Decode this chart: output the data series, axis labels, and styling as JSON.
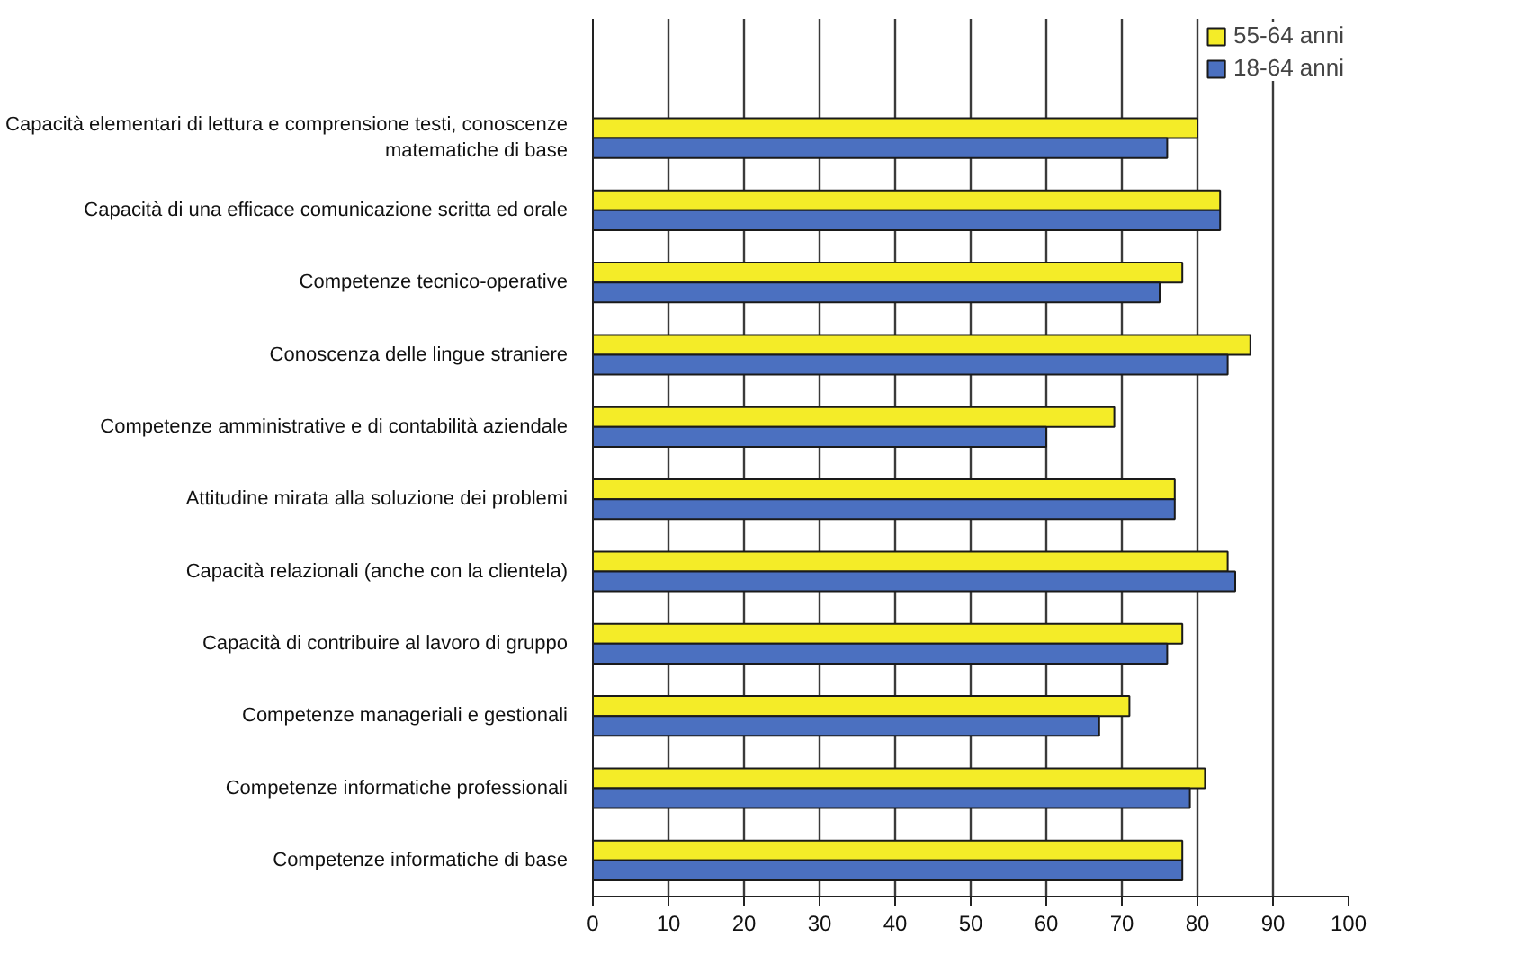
{
  "chart_data": {
    "type": "bar",
    "orientation": "horizontal",
    "categories": [
      "Capacità elementari di lettura e comprensione testi, conoscenze matematiche di base",
      "Capacità di una efficace comunicazione scritta ed orale",
      "Competenze tecnico-operative",
      "Conoscenza delle lingue straniere",
      "Competenze amministrative e di contabilità aziendale",
      "Attitudine mirata alla soluzione dei problemi",
      "Capacità relazionali (anche con la clientela)",
      "Capacità di contribuire al lavoro di gruppo",
      "Competenze manageriali e gestionali",
      "Competenze informatiche professionali",
      "Competenze informatiche di base"
    ],
    "series": [
      {
        "name": "55-64 anni",
        "color": "#f4ec28",
        "values": [
          80,
          83,
          78,
          87,
          69,
          77,
          84,
          78,
          71,
          81,
          78
        ]
      },
      {
        "name": "18-64 anni",
        "color": "#4b70c0",
        "values": [
          76,
          83,
          75,
          84,
          60,
          77,
          85,
          76,
          67,
          79,
          78
        ]
      }
    ],
    "xlim": [
      0,
      100
    ],
    "xticks": [
      0,
      10,
      20,
      30,
      40,
      50,
      60,
      70,
      80,
      90,
      100
    ],
    "grid": "x",
    "legend": "top right"
  }
}
